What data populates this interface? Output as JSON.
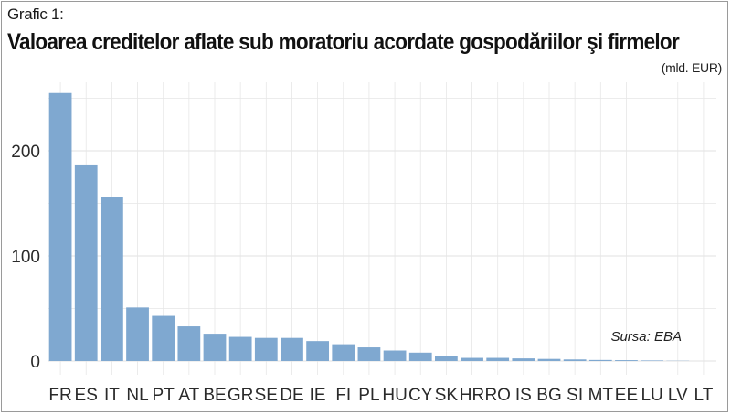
{
  "caption": "Grafic 1:",
  "title": "Valoarea creditelor aflate sub moratoriu acordate gospodăriilor şi firmelor",
  "unit": "(mld. EUR)",
  "source": "Sursa: EBA",
  "colors": {
    "bar": "#7fa8d0",
    "grid": "#e6e6e6",
    "axis_text": "#2a2a2a"
  },
  "chart_data": {
    "type": "bar",
    "title": "Valoarea creditelor aflate sub moratoriu acordate gospodăriilor şi firmelor",
    "xlabel": "",
    "ylabel": "",
    "ylim": [
      0,
      260
    ],
    "yticks": [
      0,
      100,
      200
    ],
    "grid": true,
    "categories": [
      "FR",
      "ES",
      "IT",
      "NL",
      "PT",
      "AT",
      "BE",
      "GR",
      "SE",
      "DE",
      "IE",
      "FI",
      "PL",
      "HU",
      "CY",
      "SK",
      "HR",
      "RO",
      "IS",
      "BG",
      "SI",
      "MT",
      "EE",
      "LU",
      "LV",
      "LT"
    ],
    "values": [
      255,
      187,
      156,
      51,
      43,
      33,
      26,
      23,
      22,
      22,
      19,
      16,
      13,
      10,
      8,
      5,
      3,
      3,
      2.5,
      2,
      1.5,
      1,
      0.8,
      0.5,
      0.2,
      0
    ]
  }
}
